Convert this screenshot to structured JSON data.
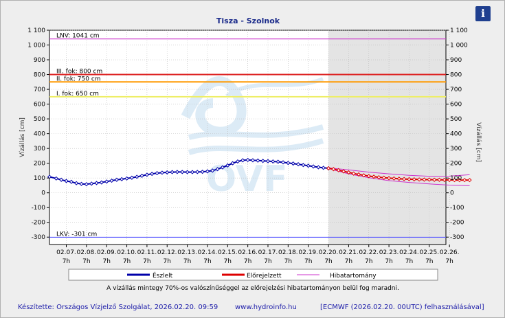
{
  "info_button": {
    "icon": "info-icon",
    "label": "i",
    "color": "#1f3f8f"
  },
  "chart_data": {
    "type": "line",
    "title": "Tisza - Szolnok",
    "ylabel_left": "Vízállás [cm]",
    "ylabel_right": "Vízállás [cm]",
    "ylim": [
      -350,
      1100
    ],
    "yticks": [
      -300,
      -200,
      -100,
      0,
      100,
      200,
      300,
      400,
      500,
      600,
      700,
      800,
      900,
      1000,
      1100
    ],
    "ytick_labels": [
      "-300",
      "-200",
      "-100",
      "0",
      "100",
      "200",
      "300",
      "400",
      "500",
      "600",
      "700",
      "800",
      "900",
      "1 000",
      "1 100"
    ],
    "xlim": [
      0,
      20
    ],
    "x_categories": [
      "02.07.",
      "02.08.",
      "02.09.",
      "02.10.",
      "02.11.",
      "02.12.",
      "02.13.",
      "02.14.",
      "02.15.",
      "02.16.",
      "02.17.",
      "02.18.",
      "02.19.",
      "02.20.",
      "02.21.",
      "02.22.",
      "02.23.",
      "02.24.",
      "02.25.",
      "02.26."
    ],
    "x_sublabel": "7h",
    "forecast_start": "02.20. 7h",
    "grid": true,
    "reference_lines": [
      {
        "label": "LNV: 1041 cm",
        "value": 1041,
        "color": "#cc33cc"
      },
      {
        "label": "III. fok: 800 cm",
        "value": 800,
        "color": "#dd2222"
      },
      {
        "label": "II. fok: 750 cm",
        "value": 750,
        "color": "#ff9900"
      },
      {
        "label": "I. fok: 650 cm",
        "value": 650,
        "color": "#eeee66"
      },
      {
        "label": "LKV: -301 cm",
        "value": -301,
        "color": "#5555ff"
      }
    ],
    "series": [
      {
        "name": "Észlelt",
        "color": "#0000aa",
        "x": [
          -0.85,
          -0.5,
          -0.25,
          0,
          0.25,
          0.5,
          0.75,
          1,
          1.25,
          1.5,
          1.75,
          2,
          2.25,
          2.5,
          2.75,
          3,
          3.25,
          3.5,
          3.75,
          4,
          4.25,
          4.5,
          4.75,
          5,
          5.25,
          5.5,
          5.75,
          6,
          6.25,
          6.5,
          6.75,
          7,
          7.25,
          7.5,
          7.75,
          8,
          8.25,
          8.5,
          8.75,
          9,
          9.25,
          9.5,
          9.75,
          10,
          10.25,
          10.5,
          10.75,
          11,
          11.25,
          11.5,
          11.75,
          12,
          12.25,
          12.5,
          12.75,
          13
        ],
        "values": [
          108,
          97,
          88,
          80,
          74,
          65,
          60,
          58,
          62,
          66,
          70,
          76,
          82,
          88,
          92,
          97,
          102,
          108,
          115,
          122,
          128,
          133,
          136,
          138,
          140,
          141,
          141,
          140,
          140,
          141,
          142,
          145,
          150,
          160,
          172,
          185,
          200,
          212,
          220,
          222,
          220,
          218,
          216,
          214,
          212,
          210,
          206,
          202,
          198,
          193,
          188,
          183,
          178,
          173,
          169,
          166
        ]
      },
      {
        "name": "Előrejelzett",
        "color": "#dd0000",
        "x": [
          13,
          13.25,
          13.5,
          13.75,
          14,
          14.25,
          14.5,
          14.75,
          15,
          15.25,
          15.5,
          15.75,
          16,
          16.25,
          16.5,
          16.75,
          17,
          17.25,
          17.5,
          17.75,
          18,
          18.25,
          18.5,
          18.75,
          19,
          19.25,
          19.5,
          19.75,
          20
        ],
        "values": [
          166,
          160,
          153,
          145,
          138,
          130,
          124,
          118,
          113,
          109,
          105,
          102,
          99,
          97,
          95,
          93,
          92,
          91,
          90,
          89,
          89,
          88,
          88,
          87,
          87,
          86,
          86,
          86,
          86
        ]
      },
      {
        "name": "Hibatartomány",
        "color": "#cc33cc",
        "upper_x": [
          13,
          14,
          15,
          16,
          17,
          18,
          19,
          20
        ],
        "upper_values": [
          168,
          155,
          140,
          128,
          118,
          112,
          113,
          122
        ],
        "lower_x": [
          13,
          14,
          15,
          16,
          17,
          18,
          19,
          20
        ],
        "lower_values": [
          164,
          128,
          102,
          82,
          70,
          60,
          52,
          48
        ]
      }
    ],
    "note": "A vízállás mintegy 70%-os valószínűséggel az előrejelzési hibatartományon belül fog maradni."
  },
  "footer": {
    "credit": "Készítette: Országos Vízjelző Szolgálat, 2026.02.20. 09:59",
    "url": "www.hydroinfo.hu",
    "source": "[ECMWF (2026.02.20. 00UTC) felhasználásával]"
  },
  "watermark": {
    "icon": "ovf-logo-watermark",
    "text": "OVF"
  }
}
